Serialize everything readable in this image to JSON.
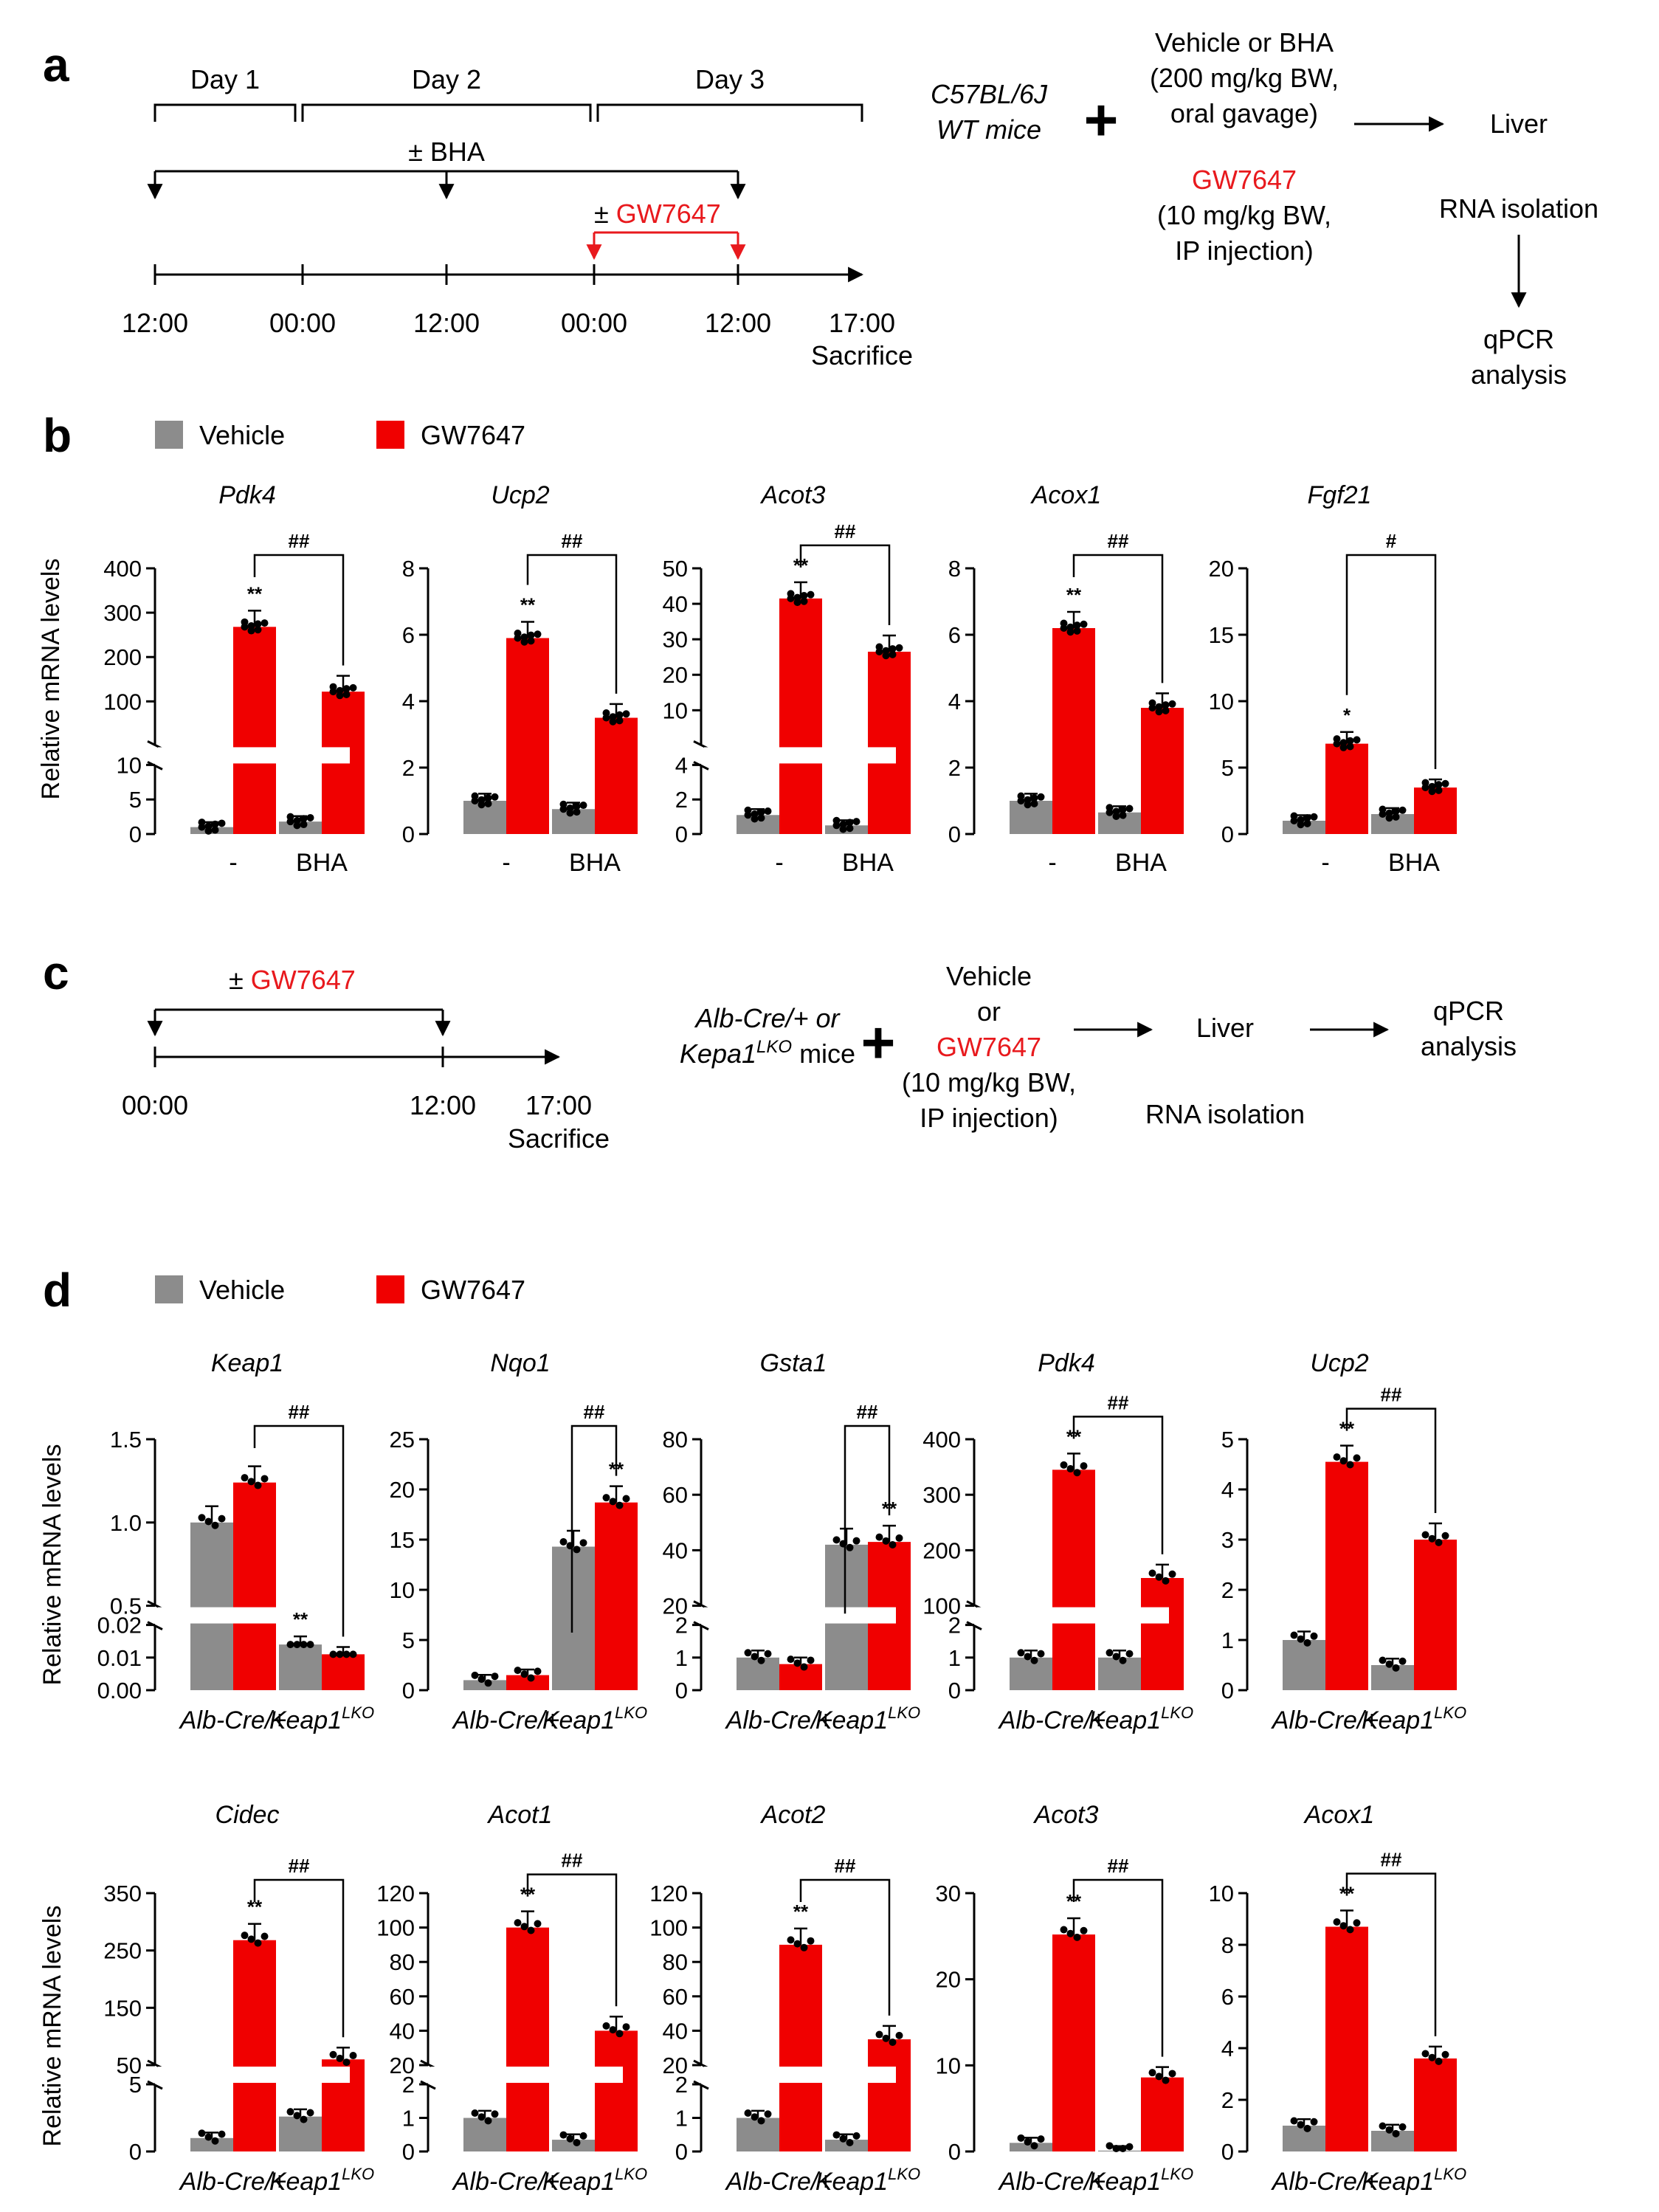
{
  "panel_labels": {
    "a": "a",
    "b": "b",
    "c": "c",
    "d": "d"
  },
  "colors": {
    "vehicle": "#8c8c8c",
    "gw7647": "#f00000",
    "red_text": "#e8191d"
  },
  "panel_a": {
    "days": [
      "Day 1",
      "Day 2",
      "Day 3"
    ],
    "bha_label": "± BHA",
    "gw_prefix": "±",
    "gw_label": "GW7647",
    "times": [
      "12:00",
      "00:00",
      "12:00",
      "00:00",
      "12:00",
      "17:00"
    ],
    "sacrifice": "Sacrifice",
    "mice_line1": "C57BL/6J",
    "mice_line2": "WT mice",
    "plus": "+",
    "treat_line1": "Vehicle or BHA",
    "treat_line2": "(200 mg/kg BW,",
    "treat_line3": "oral gavage)",
    "gw_drug": "GW7647",
    "gw_line2": "(10 mg/kg BW,",
    "gw_line3": "IP injection)",
    "liver": "Liver",
    "rna": "RNA isolation",
    "qpcr1": "qPCR",
    "qpcr2": "analysis"
  },
  "panel_c": {
    "gw_prefix": "±",
    "gw_label": "GW7647",
    "times": [
      "00:00",
      "12:00",
      "17:00"
    ],
    "sacrifice": "Sacrifice",
    "mice_line1": "Alb-Cre/+ or",
    "mice_line2": "Kepa1",
    "mice_sup": "LKO",
    "mice_suffix": " mice",
    "plus": "+",
    "vehicle": "Vehicle",
    "or": "or",
    "gw_drug": "GW7647",
    "dose1": "(10 mg/kg BW,",
    "dose2": "IP injection)",
    "liver": "Liver",
    "rna": "RNA isolation",
    "qpcr1": "qPCR",
    "qpcr2": "analysis"
  },
  "legend": {
    "vehicle": "Vehicle",
    "gw7647": "GW7647"
  },
  "y_axis_label": "Relative mRNA levels",
  "chart_data": [
    {
      "panel": "b",
      "type": "bar",
      "title": "Pdk4",
      "categories": [
        "-",
        "BHA"
      ],
      "ylabel": "Relative mRNA levels",
      "series": [
        {
          "name": "Vehicle",
          "values": [
            1.0,
            1.8
          ]
        },
        {
          "name": "GW7647",
          "values": [
            268,
            122
          ]
        }
      ],
      "axis_break": {
        "lower": [
          0,
          10
        ],
        "upper": [
          0,
          400
        ],
        "lower_ticks": [
          0,
          5,
          10
        ],
        "upper_ticks": [
          100,
          200,
          300,
          400
        ]
      },
      "significance": {
        "marks": [
          "**",
          ""
        ],
        "bracket": "##"
      }
    },
    {
      "panel": "b",
      "type": "bar",
      "title": "Ucp2",
      "categories": [
        "-",
        "BHA"
      ],
      "ylabel": "Relative mRNA levels",
      "series": [
        {
          "name": "Vehicle",
          "values": [
            1.0,
            0.75
          ]
        },
        {
          "name": "GW7647",
          "values": [
            5.9,
            3.5
          ]
        }
      ],
      "ylim": [
        0,
        8
      ],
      "ticks": [
        0,
        2,
        4,
        6,
        8
      ],
      "significance": {
        "marks": [
          "**",
          ""
        ],
        "bracket": "##"
      }
    },
    {
      "panel": "b",
      "type": "bar",
      "title": "Acot3",
      "categories": [
        "-",
        "BHA"
      ],
      "ylabel": "Relative mRNA levels",
      "series": [
        {
          "name": "Vehicle",
          "values": [
            1.1,
            0.5
          ]
        },
        {
          "name": "GW7647",
          "values": [
            41.5,
            26.5
          ]
        }
      ],
      "axis_break": {
        "lower": [
          0,
          4
        ],
        "upper": [
          0,
          50
        ],
        "lower_ticks": [
          0,
          2,
          4
        ],
        "upper_ticks": [
          10,
          20,
          30,
          40,
          50
        ]
      },
      "significance": {
        "marks": [
          "**",
          ""
        ],
        "bracket": "##"
      }
    },
    {
      "panel": "b",
      "type": "bar",
      "title": "Acox1",
      "categories": [
        "-",
        "BHA"
      ],
      "ylabel": "Relative mRNA levels",
      "series": [
        {
          "name": "Vehicle",
          "values": [
            1.0,
            0.65
          ]
        },
        {
          "name": "GW7647",
          "values": [
            6.2,
            3.8
          ]
        }
      ],
      "ylim": [
        0,
        8
      ],
      "ticks": [
        0,
        2,
        4,
        6,
        8
      ],
      "significance": {
        "marks": [
          "**",
          ""
        ],
        "bracket": "##"
      }
    },
    {
      "panel": "b",
      "type": "bar",
      "title": "Fgf21",
      "categories": [
        "-",
        "BHA"
      ],
      "ylabel": "Relative mRNA levels",
      "series": [
        {
          "name": "Vehicle",
          "values": [
            1.0,
            1.5
          ]
        },
        {
          "name": "GW7647",
          "values": [
            6.8,
            3.5
          ]
        }
      ],
      "ylim": [
        0,
        20
      ],
      "ticks": [
        0,
        5,
        10,
        15,
        20
      ],
      "significance": {
        "marks": [
          "*",
          ""
        ],
        "bracket": "#"
      }
    },
    {
      "panel": "d",
      "type": "bar",
      "title": "Keap1",
      "categories": [
        "Alb-Cre/+",
        "Keap1LKO"
      ],
      "ylabel": "Relative mRNA levels",
      "series": [
        {
          "name": "Vehicle",
          "values": [
            1.0,
            0.014
          ]
        },
        {
          "name": "GW7647",
          "values": [
            1.24,
            0.011
          ]
        }
      ],
      "axis_break": {
        "lower": [
          0,
          0.02
        ],
        "upper": [
          0.5,
          1.5
        ],
        "lower_ticks": [
          0.0,
          0.01,
          0.02
        ],
        "upper_ticks": [
          0.5,
          1.0,
          1.5
        ],
        "tick_labels_lower": [
          "0.00",
          "0.01",
          "0.02"
        ],
        "tick_labels_upper": [
          "0.5",
          "1.0",
          "1.5"
        ]
      },
      "significance": {
        "marks": [
          "",
          "**"
        ],
        "bracket": "##"
      }
    },
    {
      "panel": "d",
      "type": "bar",
      "title": "Nqo1",
      "categories": [
        "Alb-Cre/+",
        "Keap1LKO"
      ],
      "ylabel": "Relative mRNA levels",
      "series": [
        {
          "name": "Vehicle",
          "values": [
            1.0,
            14.3
          ]
        },
        {
          "name": "GW7647",
          "values": [
            1.5,
            18.7
          ]
        }
      ],
      "ylim": [
        0,
        25
      ],
      "ticks": [
        0,
        5,
        10,
        15,
        20,
        25
      ],
      "significance": {
        "marks": [
          "",
          "**"
        ],
        "bracket": "##"
      }
    },
    {
      "panel": "d",
      "type": "bar",
      "title": "Gsta1",
      "categories": [
        "Alb-Cre/+",
        "Keap1LKO"
      ],
      "ylabel": "Relative mRNA levels",
      "series": [
        {
          "name": "Vehicle",
          "values": [
            1.0,
            42
          ]
        },
        {
          "name": "GW7647",
          "values": [
            0.8,
            43
          ]
        }
      ],
      "axis_break": {
        "lower": [
          0,
          2
        ],
        "upper": [
          20,
          80
        ],
        "lower_ticks": [
          0,
          1,
          2
        ],
        "upper_ticks": [
          20,
          40,
          60,
          80
        ]
      },
      "significance": {
        "marks": [
          "",
          "**"
        ],
        "bracket": "##"
      }
    },
    {
      "panel": "d",
      "type": "bar",
      "title": "Pdk4",
      "categories": [
        "Alb-Cre/+",
        "Keap1LKO"
      ],
      "ylabel": "Relative mRNA levels",
      "series": [
        {
          "name": "Vehicle",
          "values": [
            1.0,
            1.0
          ]
        },
        {
          "name": "GW7647",
          "values": [
            345,
            150
          ]
        }
      ],
      "axis_break": {
        "lower": [
          0,
          2
        ],
        "upper": [
          100,
          400
        ],
        "lower_ticks": [
          0,
          1,
          2
        ],
        "upper_ticks": [
          100,
          200,
          300,
          400
        ]
      },
      "significance": {
        "marks": [
          "**",
          ""
        ],
        "bracket": "##"
      }
    },
    {
      "panel": "d",
      "type": "bar",
      "title": "Ucp2",
      "categories": [
        "Alb-Cre/+",
        "Keap1LKO"
      ],
      "ylabel": "Relative mRNA levels",
      "series": [
        {
          "name": "Vehicle",
          "values": [
            1.0,
            0.5
          ]
        },
        {
          "name": "GW7647",
          "values": [
            4.55,
            3.0
          ]
        }
      ],
      "ylim": [
        0,
        5
      ],
      "ticks": [
        0,
        1,
        2,
        3,
        4,
        5
      ],
      "significance": {
        "marks": [
          "**",
          ""
        ],
        "bracket": "##"
      }
    },
    {
      "panel": "d",
      "type": "bar",
      "title": "Cidec",
      "categories": [
        "Alb-Cre/+",
        "Keap1LKO"
      ],
      "ylabel": "Relative mRNA levels",
      "series": [
        {
          "name": "Vehicle",
          "values": [
            1.0,
            2.6
          ]
        },
        {
          "name": "GW7647",
          "values": [
            268,
            60
          ]
        }
      ],
      "axis_break": {
        "lower": [
          0,
          5
        ],
        "upper": [
          50,
          350
        ],
        "lower_ticks": [
          0,
          5
        ],
        "upper_ticks": [
          50,
          150,
          250,
          350
        ]
      },
      "significance": {
        "marks": [
          "**",
          ""
        ],
        "bracket": "##"
      }
    },
    {
      "panel": "d",
      "type": "bar",
      "title": "Acot1",
      "categories": [
        "Alb-Cre/+",
        "Keap1LKO"
      ],
      "ylabel": "Relative mRNA levels",
      "series": [
        {
          "name": "Vehicle",
          "values": [
            1.0,
            0.35
          ]
        },
        {
          "name": "GW7647",
          "values": [
            100,
            40
          ]
        }
      ],
      "axis_break": {
        "lower": [
          0,
          2
        ],
        "upper": [
          20,
          120
        ],
        "lower_ticks": [
          0,
          1,
          2
        ],
        "upper_ticks": [
          20,
          40,
          60,
          80,
          100,
          120
        ]
      },
      "significance": {
        "marks": [
          "**",
          ""
        ],
        "bracket": "##"
      }
    },
    {
      "panel": "d",
      "type": "bar",
      "title": "Acot2",
      "categories": [
        "Alb-Cre/+",
        "Keap1LKO"
      ],
      "ylabel": "Relative mRNA levels",
      "series": [
        {
          "name": "Vehicle",
          "values": [
            1.0,
            0.35
          ]
        },
        {
          "name": "GW7647",
          "values": [
            90,
            35
          ]
        }
      ],
      "axis_break": {
        "lower": [
          0,
          2
        ],
        "upper": [
          20,
          120
        ],
        "lower_ticks": [
          0,
          1,
          2
        ],
        "upper_ticks": [
          20,
          40,
          60,
          80,
          100,
          120
        ]
      },
      "significance": {
        "marks": [
          "**",
          ""
        ],
        "bracket": "##"
      }
    },
    {
      "panel": "d",
      "type": "bar",
      "title": "Acot3",
      "categories": [
        "Alb-Cre/+",
        "Keap1LKO"
      ],
      "ylabel": "Relative mRNA levels",
      "series": [
        {
          "name": "Vehicle",
          "values": [
            1.0,
            0.1
          ]
        },
        {
          "name": "GW7647",
          "values": [
            25.2,
            8.6
          ]
        }
      ],
      "ylim": [
        0,
        30
      ],
      "ticks": [
        0,
        10,
        20,
        30
      ],
      "significance": {
        "marks": [
          "**",
          ""
        ],
        "bracket": "##"
      }
    },
    {
      "panel": "d",
      "type": "bar",
      "title": "Acox1",
      "categories": [
        "Alb-Cre/+",
        "Keap1LKO"
      ],
      "ylabel": "Relative mRNA levels",
      "series": [
        {
          "name": "Vehicle",
          "values": [
            1.0,
            0.8
          ]
        },
        {
          "name": "GW7647",
          "values": [
            8.7,
            3.6
          ]
        }
      ],
      "ylim": [
        0,
        10
      ],
      "ticks": [
        0,
        2,
        4,
        6,
        8,
        10
      ],
      "significance": {
        "marks": [
          "**",
          ""
        ],
        "bracket": "##"
      }
    }
  ]
}
